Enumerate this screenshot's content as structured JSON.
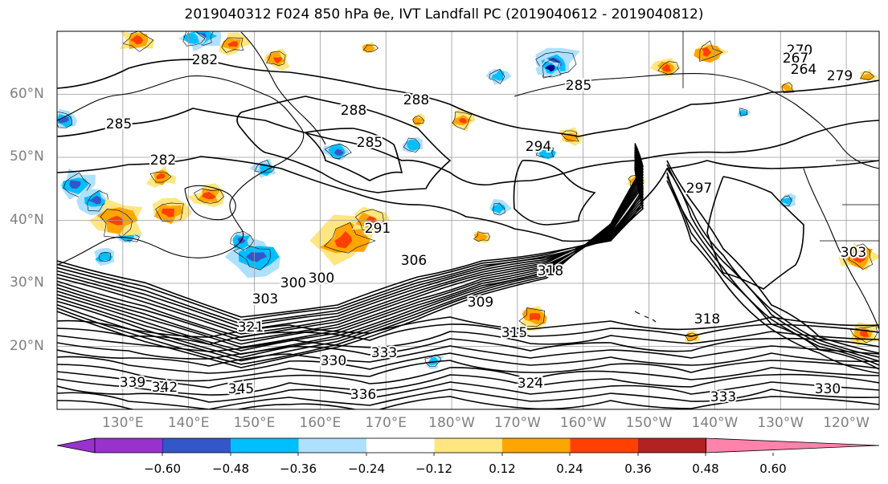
{
  "title": "2019040312 F024 850 hPa θe, IVT Landfall PC (2019040612 - 2019040812)",
  "map": {
    "projection": "PlateCarree",
    "lon_range_E": [
      120,
      245
    ],
    "lat_range": [
      10,
      70
    ],
    "lat_labels": [
      "60°N",
      "50°N",
      "40°N",
      "30°N",
      "20°N"
    ],
    "lon_labels": [
      "130°E",
      "140°E",
      "150°E",
      "160°E",
      "170°E",
      "180°W",
      "170°W",
      "160°W",
      "150°W",
      "140°W",
      "130°W",
      "120°W"
    ],
    "contour_color": "#000000",
    "contour_labels": [
      "282",
      "285",
      "288",
      "285",
      "294",
      "288",
      "282",
      "291",
      "300",
      "306",
      "318",
      "303",
      "300",
      "309",
      "321",
      "315",
      "333",
      "330",
      "339",
      "342",
      "345",
      "336",
      "324",
      "330",
      "333",
      "270",
      "267",
      "264",
      "297",
      "303",
      "318",
      "285",
      "279"
    ]
  },
  "colorbar": {
    "colors": [
      "#9932cc",
      "#00008b",
      "#3356c9",
      "#00bfff",
      "#aee0ff",
      "#ffffff",
      "#ffe680",
      "#ffa500",
      "#ff4000",
      "#b22222",
      "#ff82ab"
    ],
    "tick_labels": [
      "−0.60",
      "−0.48",
      "−0.36",
      "−0.24",
      "−0.12",
      "0.12",
      "0.24",
      "0.36",
      "0.48",
      "0.60"
    ]
  }
}
